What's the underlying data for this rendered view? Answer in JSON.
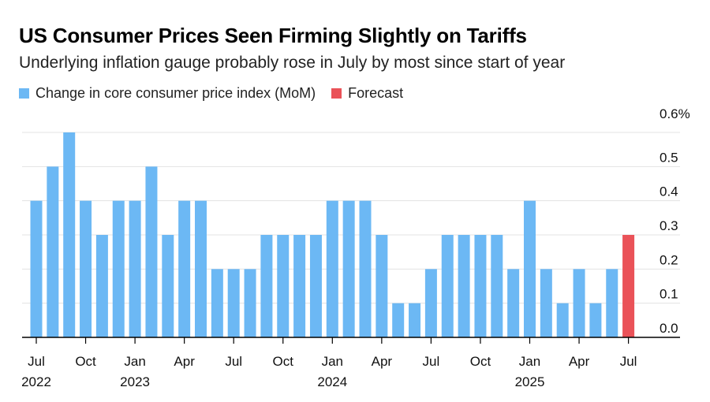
{
  "chart_data": {
    "type": "bar",
    "title": "US Consumer Prices Seen Firming Slightly on Tariffs",
    "subtitle": "Underlying inflation gauge probably rose in July by most since start of year",
    "legend": [
      {
        "label": "Change in core consumer price index (MoM)",
        "color": "#6cb8f4"
      },
      {
        "label": "Forecast",
        "color": "#ea5258"
      }
    ],
    "categories": [
      "Jul 2022",
      "Aug 2022",
      "Sep 2022",
      "Oct 2022",
      "Nov 2022",
      "Dec 2022",
      "Jan 2023",
      "Feb 2023",
      "Mar 2023",
      "Apr 2023",
      "May 2023",
      "Jun 2023",
      "Jul 2023",
      "Aug 2023",
      "Sep 2023",
      "Oct 2023",
      "Nov 2023",
      "Dec 2023",
      "Jan 2024",
      "Feb 2024",
      "Mar 2024",
      "Apr 2024",
      "May 2024",
      "Jun 2024",
      "Jul 2024",
      "Aug 2024",
      "Sep 2024",
      "Oct 2024",
      "Nov 2024",
      "Dec 2024",
      "Jan 2025",
      "Feb 2025",
      "Mar 2025",
      "Apr 2025",
      "May 2025",
      "Jun 2025",
      "Jul 2025"
    ],
    "values": [
      0.4,
      0.5,
      0.6,
      0.4,
      0.3,
      0.4,
      0.4,
      0.5,
      0.3,
      0.4,
      0.4,
      0.2,
      0.2,
      0.2,
      0.3,
      0.3,
      0.3,
      0.3,
      0.4,
      0.4,
      0.4,
      0.3,
      0.1,
      0.1,
      0.2,
      0.3,
      0.3,
      0.3,
      0.3,
      0.2,
      0.4,
      0.2,
      0.1,
      0.2,
      0.1,
      0.2,
      0.3
    ],
    "forecast_index": 36,
    "ylim": [
      0,
      0.6
    ],
    "yticks": [
      {
        "value": 0.0,
        "label": "0.0"
      },
      {
        "value": 0.1,
        "label": "0.1"
      },
      {
        "value": 0.2,
        "label": "0.2"
      },
      {
        "value": 0.3,
        "label": "0.3"
      },
      {
        "value": 0.4,
        "label": "0.4"
      },
      {
        "value": 0.5,
        "label": "0.5"
      },
      {
        "value": 0.6,
        "label": "0.6%"
      }
    ],
    "xticks": [
      {
        "index": 0,
        "month": "Jul",
        "year": "2022"
      },
      {
        "index": 3,
        "month": "Oct",
        "year": ""
      },
      {
        "index": 6,
        "month": "Jan",
        "year": "2023"
      },
      {
        "index": 9,
        "month": "Apr",
        "year": ""
      },
      {
        "index": 12,
        "month": "Jul",
        "year": ""
      },
      {
        "index": 15,
        "month": "Oct",
        "year": ""
      },
      {
        "index": 18,
        "month": "Jan",
        "year": "2024"
      },
      {
        "index": 21,
        "month": "Apr",
        "year": ""
      },
      {
        "index": 24,
        "month": "Jul",
        "year": ""
      },
      {
        "index": 27,
        "month": "Oct",
        "year": ""
      },
      {
        "index": 30,
        "month": "Jan",
        "year": "2025"
      },
      {
        "index": 33,
        "month": "Apr",
        "year": ""
      },
      {
        "index": 36,
        "month": "Jul",
        "year": ""
      }
    ],
    "xlabel": "",
    "ylabel": "",
    "grid": true,
    "legend_position": "top-left",
    "yaxis_position": "right",
    "colors": {
      "bar": "#6cb8f4",
      "forecast": "#ea5258",
      "grid": "#e3e3e3",
      "axis": "#000000"
    }
  }
}
